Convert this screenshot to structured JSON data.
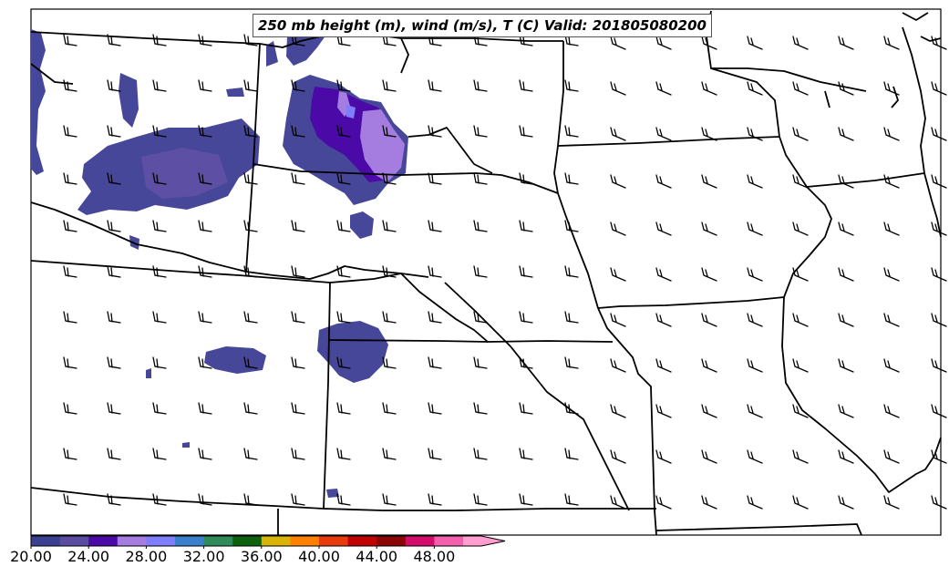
{
  "title": "250 mb height (m), wind (m/s), T (C) Valid: 201805080200",
  "colorbar": {
    "labels": [
      "20.00",
      "24.00",
      "28.00",
      "32.00",
      "36.00",
      "40.00",
      "44.00",
      "48.00"
    ],
    "colors": [
      "#3b3f92",
      "#5a4c9f",
      "#4b0aa8",
      "#a57de0",
      "#7d7dfd",
      "#3b7fcd",
      "#2f8b5a",
      "#0e620e",
      "#d8b408",
      "#ff7f00",
      "#e83a0a",
      "#c00202",
      "#8a0505",
      "#d40c6c",
      "#f45fae",
      "#ff9ecf"
    ]
  },
  "colors": {
    "boundary": "#000000",
    "barb": "#000000",
    "frame": "#000000"
  }
}
